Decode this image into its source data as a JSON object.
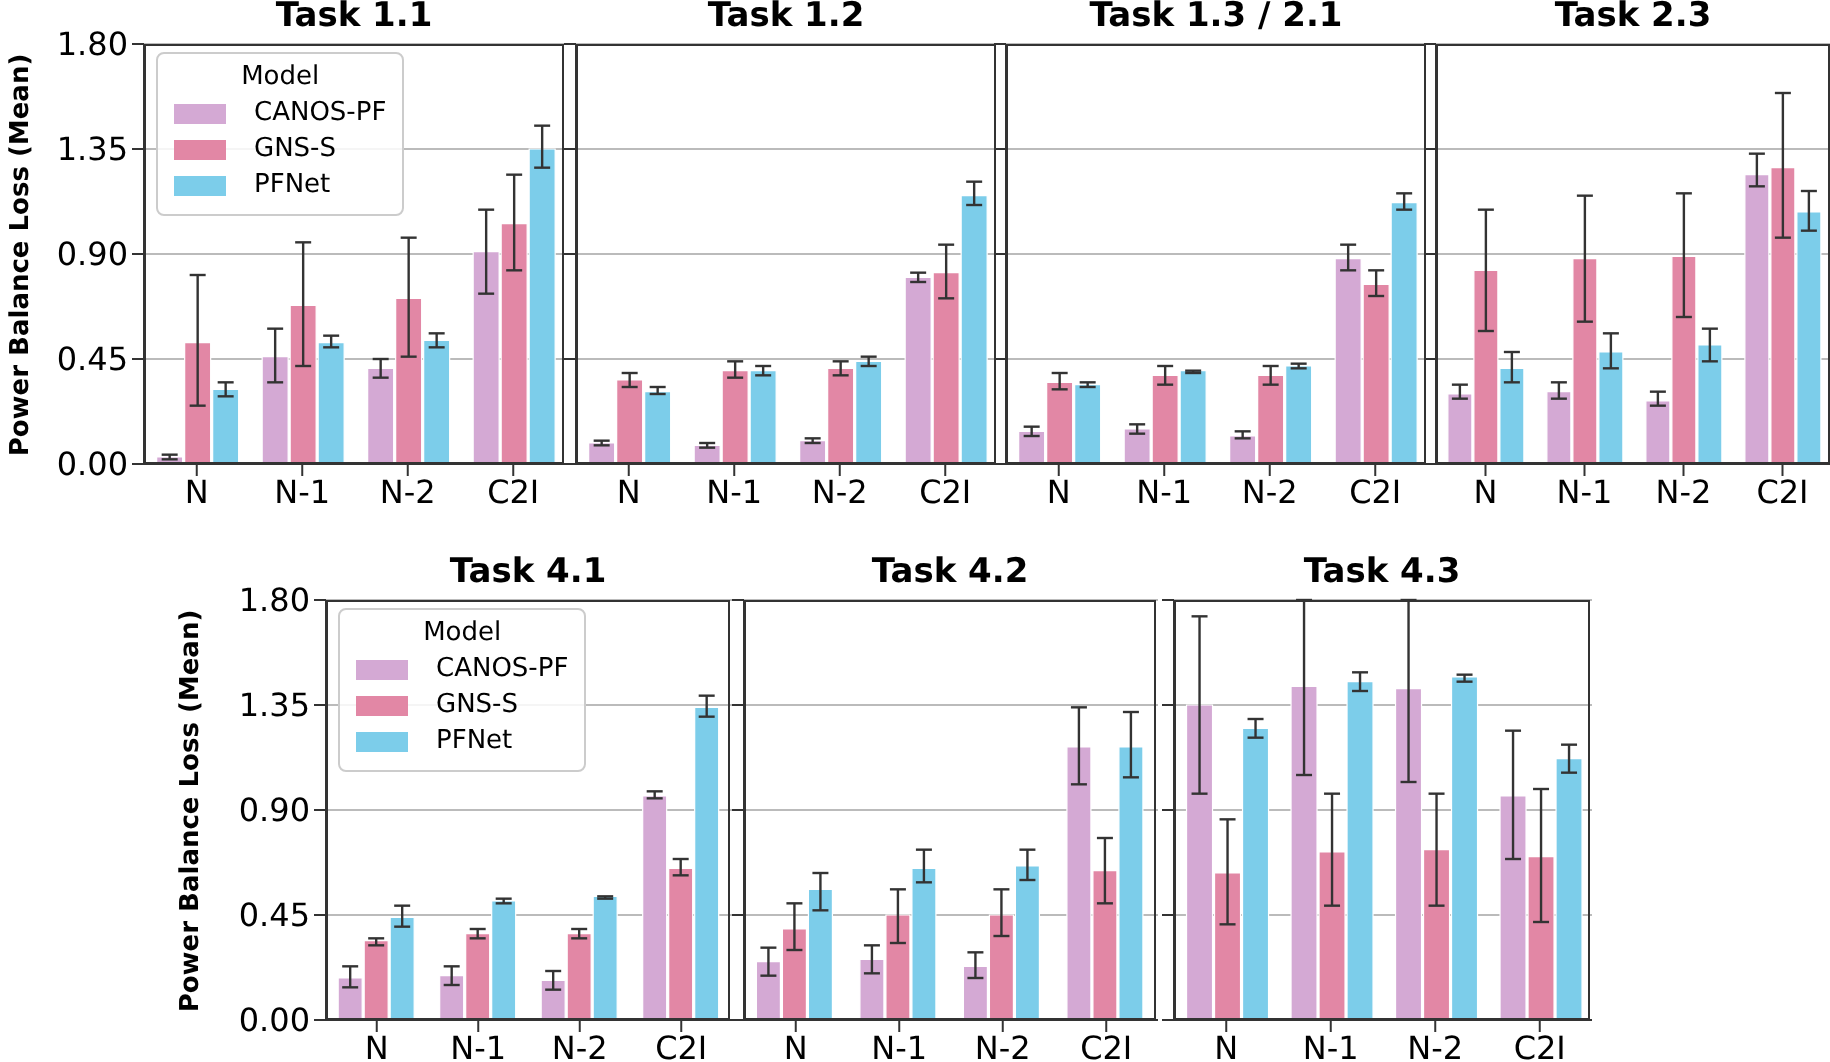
{
  "chart_data": [
    {
      "type": "bar",
      "title": "Task 1.1",
      "ylabel": "Power Balance Loss (Mean)",
      "legend_title": "Model",
      "legend": "top left",
      "grid": "y",
      "categories": [
        "N",
        "N-1",
        "N-2",
        "C2I"
      ],
      "ylim": [
        0,
        1.8
      ],
      "yticks": [
        {
          "value": 0,
          "label": "0.00"
        },
        {
          "value": 0.45,
          "label": "0.45"
        },
        {
          "value": 0.9,
          "label": "0.90"
        },
        {
          "value": 1.35,
          "label": "1.35"
        },
        {
          "value": 1.8,
          "label": "1.80"
        }
      ],
      "series": [
        {
          "name": "CANOS-PF",
          "color": "#d4a9d4",
          "values": [
            0.03,
            0.46,
            0.41,
            0.91
          ],
          "errors": [
            [
              0.02,
              0.04
            ],
            [
              0.35,
              0.58
            ],
            [
              0.37,
              0.45
            ],
            [
              0.73,
              1.09
            ]
          ]
        },
        {
          "name": "GNS-S",
          "color": "#e287a5",
          "values": [
            0.52,
            0.68,
            0.71,
            1.03
          ],
          "errors": [
            [
              0.25,
              0.81
            ],
            [
              0.42,
              0.95
            ],
            [
              0.46,
              0.97
            ],
            [
              0.83,
              1.24
            ]
          ]
        },
        {
          "name": "PFNet",
          "color": "#7ccdea",
          "values": [
            0.32,
            0.52,
            0.53,
            1.35
          ],
          "errors": [
            [
              0.29,
              0.35
            ],
            [
              0.5,
              0.55
            ],
            [
              0.5,
              0.56
            ],
            [
              1.27,
              1.45
            ]
          ]
        }
      ]
    },
    {
      "type": "bar",
      "title": "Task 1.2",
      "grid": "y",
      "tick_labels": "x",
      "categories": [
        "N",
        "N-1",
        "N-2",
        "C2I"
      ],
      "ylim": [
        0,
        1.8
      ],
      "yticks": [
        {
          "value": 0,
          "label": null
        },
        {
          "value": 0.45,
          "label": null
        },
        {
          "value": 0.9,
          "label": null
        },
        {
          "value": 1.35,
          "label": null
        },
        {
          "value": 1.8,
          "label": null
        }
      ],
      "series": [
        {
          "color": "#d4a9d4",
          "values": [
            0.09,
            0.08,
            0.1,
            0.8
          ],
          "errors": [
            [
              0.08,
              0.1
            ],
            [
              0.07,
              0.09
            ],
            [
              0.09,
              0.11
            ],
            [
              0.78,
              0.82
            ]
          ]
        },
        {
          "color": "#e287a5",
          "values": [
            0.36,
            0.4,
            0.41,
            0.82
          ],
          "errors": [
            [
              0.33,
              0.39
            ],
            [
              0.37,
              0.44
            ],
            [
              0.38,
              0.44
            ],
            [
              0.71,
              0.94
            ]
          ]
        },
        {
          "color": "#7ccdea",
          "values": [
            0.31,
            0.4,
            0.44,
            1.15
          ],
          "errors": [
            [
              0.3,
              0.33
            ],
            [
              0.38,
              0.42
            ],
            [
              0.42,
              0.46
            ],
            [
              1.11,
              1.21
            ]
          ]
        }
      ]
    },
    {
      "type": "bar",
      "title": "Task 1.3 / 2.1",
      "grid": "y",
      "tick_labels": "x",
      "categories": [
        "N",
        "N-1",
        "N-2",
        "C2I"
      ],
      "ylim": [
        0,
        1.8
      ],
      "yticks": [
        {
          "value": 0,
          "label": null
        },
        {
          "value": 0.45,
          "label": null
        },
        {
          "value": 0.9,
          "label": null
        },
        {
          "value": 1.35,
          "label": null
        },
        {
          "value": 1.8,
          "label": null
        }
      ],
      "series": [
        {
          "color": "#d4a9d4",
          "values": [
            0.14,
            0.15,
            0.12,
            0.88
          ],
          "errors": [
            [
              0.12,
              0.16
            ],
            [
              0.13,
              0.17
            ],
            [
              0.11,
              0.14
            ],
            [
              0.83,
              0.94
            ]
          ]
        },
        {
          "color": "#e287a5",
          "values": [
            0.35,
            0.38,
            0.38,
            0.77
          ],
          "errors": [
            [
              0.32,
              0.39
            ],
            [
              0.34,
              0.42
            ],
            [
              0.34,
              0.42
            ],
            [
              0.72,
              0.83
            ]
          ]
        },
        {
          "color": "#7ccdea",
          "values": [
            0.34,
            0.4,
            0.42,
            1.12
          ],
          "errors": [
            [
              0.33,
              0.35
            ],
            [
              0.39,
              0.4
            ],
            [
              0.41,
              0.43
            ],
            [
              1.09,
              1.16
            ]
          ]
        }
      ]
    },
    {
      "type": "bar",
      "title": "Task 2.3",
      "grid": "y",
      "tick_labels": "x",
      "categories": [
        "N",
        "N-1",
        "N-2",
        "C2I"
      ],
      "ylim": [
        0,
        1.8
      ],
      "yticks": [
        {
          "value": 0,
          "label": null
        },
        {
          "value": 0.45,
          "label": null
        },
        {
          "value": 0.9,
          "label": null
        },
        {
          "value": 1.35,
          "label": null
        },
        {
          "value": 1.8,
          "label": null
        }
      ],
      "series": [
        {
          "color": "#d4a9d4",
          "values": [
            0.3,
            0.31,
            0.27,
            1.24
          ],
          "errors": [
            [
              0.28,
              0.34
            ],
            [
              0.28,
              0.35
            ],
            [
              0.25,
              0.31
            ],
            [
              1.19,
              1.33
            ]
          ]
        },
        {
          "color": "#e287a5",
          "values": [
            0.83,
            0.88,
            0.89,
            1.27
          ],
          "errors": [
            [
              0.57,
              1.09
            ],
            [
              0.61,
              1.15
            ],
            [
              0.63,
              1.16
            ],
            [
              0.97,
              1.59
            ]
          ]
        },
        {
          "color": "#7ccdea",
          "values": [
            0.41,
            0.48,
            0.51,
            1.08
          ],
          "errors": [
            [
              0.35,
              0.48
            ],
            [
              0.41,
              0.56
            ],
            [
              0.44,
              0.58
            ],
            [
              1.0,
              1.17
            ]
          ]
        }
      ]
    },
    {
      "type": "bar",
      "title": "Task 4.1",
      "ylabel": "Power Balance Loss (Mean)",
      "legend_title": "Model",
      "legend": "top left",
      "grid": "y",
      "categories": [
        "N",
        "N-1",
        "N-2",
        "C2I"
      ],
      "ylim": [
        0,
        1.8
      ],
      "yticks": [
        {
          "value": 0,
          "label": "0.00"
        },
        {
          "value": 0.45,
          "label": "0.45"
        },
        {
          "value": 0.9,
          "label": "0.90"
        },
        {
          "value": 1.35,
          "label": "1.35"
        },
        {
          "value": 1.8,
          "label": "1.80"
        }
      ],
      "series": [
        {
          "name": "CANOS-PF",
          "color": "#d4a9d4",
          "values": [
            0.18,
            0.19,
            0.17,
            0.96
          ],
          "errors": [
            [
              0.14,
              0.23
            ],
            [
              0.15,
              0.23
            ],
            [
              0.13,
              0.21
            ],
            [
              0.95,
              0.98
            ]
          ]
        },
        {
          "name": "GNS-S",
          "color": "#e287a5",
          "values": [
            0.34,
            0.37,
            0.37,
            0.65
          ],
          "errors": [
            [
              0.32,
              0.35
            ],
            [
              0.35,
              0.39
            ],
            [
              0.35,
              0.39
            ],
            [
              0.62,
              0.69
            ]
          ]
        },
        {
          "name": "PFNet",
          "color": "#7ccdea",
          "values": [
            0.44,
            0.51,
            0.53,
            1.34
          ],
          "errors": [
            [
              0.4,
              0.49
            ],
            [
              0.5,
              0.52
            ],
            [
              0.52,
              0.53
            ],
            [
              1.3,
              1.39
            ]
          ]
        }
      ]
    },
    {
      "type": "bar",
      "title": "Task 4.2",
      "grid": "y",
      "tick_labels": "x",
      "categories": [
        "N",
        "N-1",
        "N-2",
        "C2I"
      ],
      "ylim": [
        0,
        1.8
      ],
      "yticks": [
        {
          "value": 0,
          "label": null
        },
        {
          "value": 0.45,
          "label": null
        },
        {
          "value": 0.9,
          "label": null
        },
        {
          "value": 1.35,
          "label": null
        },
        {
          "value": 1.8,
          "label": null
        }
      ],
      "series": [
        {
          "color": "#d4a9d4",
          "values": [
            0.25,
            0.26,
            0.23,
            1.17
          ],
          "errors": [
            [
              0.19,
              0.31
            ],
            [
              0.2,
              0.32
            ],
            [
              0.18,
              0.29
            ],
            [
              1.01,
              1.34
            ]
          ]
        },
        {
          "color": "#e287a5",
          "values": [
            0.39,
            0.45,
            0.45,
            0.64
          ],
          "errors": [
            [
              0.3,
              0.5
            ],
            [
              0.33,
              0.56
            ],
            [
              0.36,
              0.56
            ],
            [
              0.5,
              0.78
            ]
          ]
        },
        {
          "color": "#7ccdea",
          "values": [
            0.56,
            0.65,
            0.66,
            1.17
          ],
          "errors": [
            [
              0.47,
              0.63
            ],
            [
              0.59,
              0.73
            ],
            [
              0.6,
              0.73
            ],
            [
              1.04,
              1.32
            ]
          ]
        }
      ]
    },
    {
      "type": "bar",
      "title": "Task 4.3",
      "grid": "y",
      "tick_labels": "x",
      "categories": [
        "N",
        "N-1",
        "N-2",
        "C2I"
      ],
      "ylim": [
        0,
        1.8
      ],
      "yticks": [
        {
          "value": 0,
          "label": null
        },
        {
          "value": 0.45,
          "label": null
        },
        {
          "value": 0.9,
          "label": null
        },
        {
          "value": 1.35,
          "label": null
        },
        {
          "value": 1.8,
          "label": null
        }
      ],
      "series": [
        {
          "color": "#d4a9d4",
          "values": [
            1.35,
            1.43,
            1.42,
            0.96
          ],
          "errors": [
            [
              0.97,
              1.73
            ],
            [
              1.05,
              1.8
            ],
            [
              1.02,
              1.8
            ],
            [
              0.69,
              1.24
            ]
          ]
        },
        {
          "color": "#e287a5",
          "values": [
            0.63,
            0.72,
            0.73,
            0.7
          ],
          "errors": [
            [
              0.41,
              0.86
            ],
            [
              0.49,
              0.97
            ],
            [
              0.49,
              0.97
            ],
            [
              0.42,
              0.99
            ]
          ]
        },
        {
          "color": "#7ccdea",
          "values": [
            1.25,
            1.45,
            1.47,
            1.12
          ],
          "errors": [
            [
              1.21,
              1.29
            ],
            [
              1.41,
              1.49
            ],
            [
              1.45,
              1.48
            ],
            [
              1.06,
              1.18
            ]
          ]
        }
      ]
    }
  ]
}
